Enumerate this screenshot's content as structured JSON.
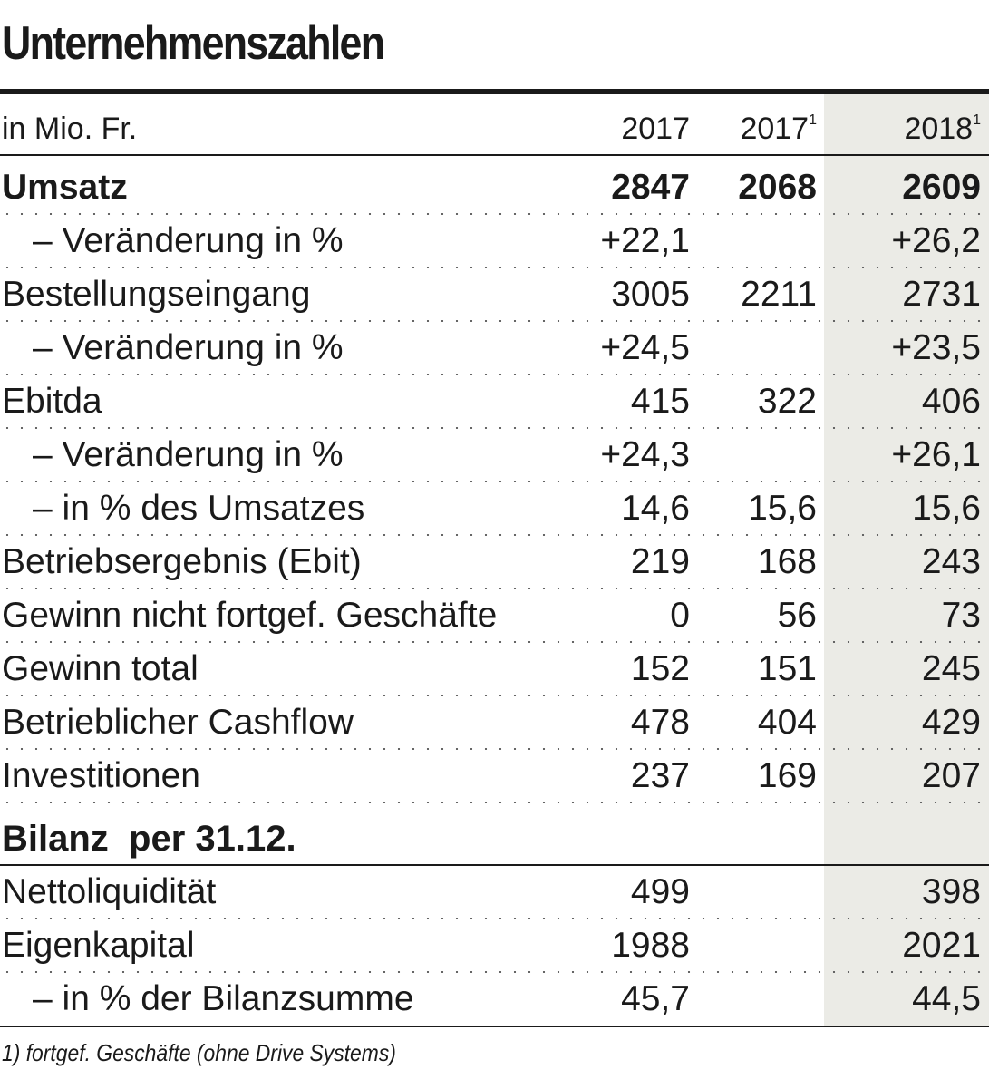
{
  "title": "Unternehmenszahlen",
  "header": {
    "unit": "in Mio. Fr.",
    "col1": "2017",
    "col2": "2017",
    "col2_sup": "1",
    "col3": "2018",
    "col3_sup": "1"
  },
  "rows": [
    {
      "label": "Umsatz",
      "v1": "2847",
      "v2": "2068",
      "v3": "2609"
    },
    {
      "label": "– Veränderung in %",
      "v1": "+22,1",
      "v2": "",
      "v3": "+26,2"
    },
    {
      "label": "Bestellungseingang",
      "v1": "3005",
      "v2": "2211",
      "v3": "2731"
    },
    {
      "label": "– Veränderung in %",
      "v1": "+24,5",
      "v2": "",
      "v3": "+23,5"
    },
    {
      "label": "Ebitda",
      "v1": "415",
      "v2": "322",
      "v3": "406"
    },
    {
      "label": "– Veränderung in %",
      "v1": "+24,3",
      "v2": "",
      "v3": "+26,1"
    },
    {
      "label": "– in % des Umsatzes",
      "v1": "14,6",
      "v2": "15,6",
      "v3": "15,6"
    },
    {
      "label": "Betriebsergebnis (Ebit)",
      "v1": "219",
      "v2": "168",
      "v3": "243"
    },
    {
      "label": "Gewinn nicht fortgef. Geschäfte",
      "v1": "0",
      "v2": "56",
      "v3": "73"
    },
    {
      "label": "Gewinn total",
      "v1": "152",
      "v2": "151",
      "v3": "245"
    },
    {
      "label": "Betrieblicher Cashflow",
      "v1": "478",
      "v2": "404",
      "v3": "429"
    },
    {
      "label": "Investitionen",
      "v1": "237",
      "v2": "169",
      "v3": "207"
    }
  ],
  "section": {
    "label": "Bilanz  per 31.12."
  },
  "rows2": [
    {
      "label": "Nettoliquidität",
      "v1": "499",
      "v2": "",
      "v3": "398"
    },
    {
      "label": "Eigenkapital",
      "v1": "1988",
      "v2": "",
      "v3": "2021"
    },
    {
      "label": "– in % der Bilanzsumme",
      "v1": "45,7",
      "v2": "",
      "v3": "44,5"
    }
  ],
  "footnote": "1) fortgef. Geschäfte (ohne Drive Systems)"
}
